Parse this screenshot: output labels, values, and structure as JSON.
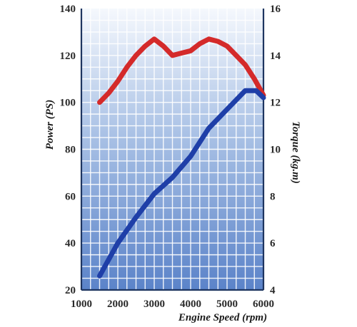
{
  "chart_data": {
    "type": "line",
    "xlabel": "Engine Speed (rpm)",
    "ylabel_left": "Power (PS)",
    "ylabel_right": "Torque (kg.m)",
    "xlim": [
      1000,
      6000
    ],
    "ylim_left": [
      20,
      140
    ],
    "ylim_right": [
      4,
      16
    ],
    "x_ticks": [
      "1000",
      "2000",
      "3000",
      "4000",
      "5000",
      "6000"
    ],
    "y_left_ticks": [
      "20",
      "40",
      "60",
      "80",
      "100",
      "120",
      "140"
    ],
    "y_right_ticks": [
      "4",
      "6",
      "8",
      "10",
      "12",
      "14",
      "16"
    ],
    "grid": true,
    "series": [
      {
        "axis": "right",
        "color": "#d42a2a",
        "x": [
          1500,
          1750,
          2000,
          2250,
          2500,
          2750,
          3000,
          3250,
          3500,
          3750,
          4000,
          4250,
          4500,
          4750,
          5000,
          5250,
          5500,
          5750,
          6000
        ],
        "values": [
          12.0,
          12.4,
          12.9,
          13.5,
          14.0,
          14.4,
          14.7,
          14.4,
          14.0,
          14.1,
          14.2,
          14.5,
          14.7,
          14.6,
          14.4,
          14.0,
          13.6,
          13.0,
          12.3
        ]
      },
      {
        "axis": "left",
        "color": "#1f3fa8",
        "x": [
          1500,
          2000,
          2500,
          3000,
          3500,
          4000,
          4500,
          5000,
          5500,
          5800,
          6000
        ],
        "values": [
          26,
          40,
          51,
          61,
          68,
          77,
          89,
          97,
          105,
          105,
          102
        ]
      }
    ]
  }
}
